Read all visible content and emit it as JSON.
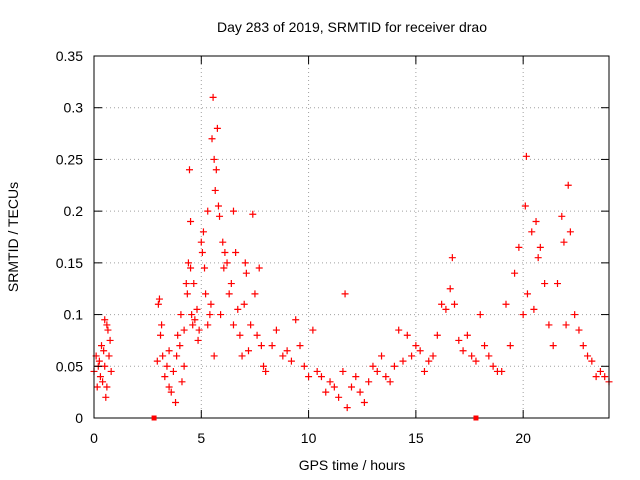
{
  "chart_data": {
    "type": "scatter",
    "title": "Day 283 of 2019, SRMTID for receiver drao",
    "xlabel": "GPS time / hours",
    "ylabel": "SRMTID / TECUs",
    "xlim": [
      0,
      24
    ],
    "ylim": [
      0,
      0.35
    ],
    "grid": true,
    "marker": "+",
    "color": "#ff0000",
    "x_ticks": [
      0,
      5,
      10,
      15,
      20
    ],
    "x_tick_labels": [
      "0",
      "5",
      "10",
      "15",
      "20"
    ],
    "y_ticks": [
      0,
      0.05,
      0.1,
      0.15,
      0.2,
      0.25,
      0.3,
      0.35
    ],
    "y_tick_labels": [
      "0",
      "0.05",
      "0.1",
      "0.15",
      "0.2",
      "0.25",
      "0.3",
      "0.35"
    ],
    "gap_markers": {
      "x": [
        2.8,
        17.8
      ],
      "y": 0
    },
    "series": [
      {
        "name": "SRMTID",
        "points": [
          [
            0.0,
            0.045
          ],
          [
            0.1,
            0.06
          ],
          [
            0.15,
            0.03
          ],
          [
            0.2,
            0.05
          ],
          [
            0.25,
            0.055
          ],
          [
            0.3,
            0.04
          ],
          [
            0.35,
            0.07
          ],
          [
            0.4,
            0.035
          ],
          [
            0.45,
            0.065
          ],
          [
            0.5,
            0.05
          ],
          [
            0.5,
            0.095
          ],
          [
            0.55,
            0.02
          ],
          [
            0.6,
            0.03
          ],
          [
            0.6,
            0.09
          ],
          [
            0.65,
            0.085
          ],
          [
            0.7,
            0.06
          ],
          [
            0.75,
            0.075
          ],
          [
            0.8,
            0.045
          ],
          [
            2.95,
            0.055
          ],
          [
            3.0,
            0.11
          ],
          [
            3.05,
            0.115
          ],
          [
            3.1,
            0.08
          ],
          [
            3.15,
            0.09
          ],
          [
            3.2,
            0.06
          ],
          [
            3.3,
            0.04
          ],
          [
            3.4,
            0.05
          ],
          [
            3.5,
            0.065
          ],
          [
            3.5,
            0.03
          ],
          [
            3.6,
            0.025
          ],
          [
            3.7,
            0.045
          ],
          [
            3.8,
            0.015
          ],
          [
            3.85,
            0.06
          ],
          [
            3.9,
            0.08
          ],
          [
            4.0,
            0.07
          ],
          [
            4.05,
            0.1
          ],
          [
            4.1,
            0.035
          ],
          [
            4.2,
            0.05
          ],
          [
            4.2,
            0.085
          ],
          [
            4.3,
            0.13
          ],
          [
            4.35,
            0.12
          ],
          [
            4.4,
            0.15
          ],
          [
            4.45,
            0.24
          ],
          [
            4.5,
            0.19
          ],
          [
            4.5,
            0.145
          ],
          [
            4.55,
            0.1
          ],
          [
            4.6,
            0.09
          ],
          [
            4.65,
            0.13
          ],
          [
            4.7,
            0.095
          ],
          [
            4.8,
            0.105
          ],
          [
            4.85,
            0.075
          ],
          [
            4.9,
            0.085
          ],
          [
            5.0,
            0.17
          ],
          [
            5.05,
            0.16
          ],
          [
            5.1,
            0.18
          ],
          [
            5.15,
            0.145
          ],
          [
            5.2,
            0.12
          ],
          [
            5.3,
            0.2
          ],
          [
            5.3,
            0.09
          ],
          [
            5.4,
            0.1
          ],
          [
            5.45,
            0.11
          ],
          [
            5.5,
            0.27
          ],
          [
            5.55,
            0.31
          ],
          [
            5.6,
            0.25
          ],
          [
            5.6,
            0.06
          ],
          [
            5.65,
            0.22
          ],
          [
            5.7,
            0.24
          ],
          [
            5.75,
            0.28
          ],
          [
            5.8,
            0.205
          ],
          [
            5.85,
            0.195
          ],
          [
            5.9,
            0.1
          ],
          [
            6.0,
            0.17
          ],
          [
            6.05,
            0.145
          ],
          [
            6.1,
            0.16
          ],
          [
            6.2,
            0.15
          ],
          [
            6.3,
            0.12
          ],
          [
            6.4,
            0.13
          ],
          [
            6.5,
            0.09
          ],
          [
            6.5,
            0.2
          ],
          [
            6.6,
            0.16
          ],
          [
            6.7,
            0.105
          ],
          [
            6.8,
            0.08
          ],
          [
            6.9,
            0.06
          ],
          [
            7.0,
            0.11
          ],
          [
            7.05,
            0.15
          ],
          [
            7.1,
            0.14
          ],
          [
            7.2,
            0.065
          ],
          [
            7.3,
            0.09
          ],
          [
            7.4,
            0.197
          ],
          [
            7.5,
            0.12
          ],
          [
            7.6,
            0.08
          ],
          [
            7.7,
            0.145
          ],
          [
            7.8,
            0.07
          ],
          [
            7.9,
            0.05
          ],
          [
            8.0,
            0.045
          ],
          [
            8.3,
            0.07
          ],
          [
            8.5,
            0.085
          ],
          [
            8.8,
            0.06
          ],
          [
            9.0,
            0.065
          ],
          [
            9.2,
            0.055
          ],
          [
            9.4,
            0.095
          ],
          [
            9.6,
            0.07
          ],
          [
            9.8,
            0.05
          ],
          [
            10.0,
            0.04
          ],
          [
            10.2,
            0.085
          ],
          [
            10.4,
            0.045
          ],
          [
            10.6,
            0.04
          ],
          [
            10.8,
            0.025
          ],
          [
            11.0,
            0.035
          ],
          [
            11.2,
            0.03
          ],
          [
            11.4,
            0.02
          ],
          [
            11.6,
            0.045
          ],
          [
            11.7,
            0.12
          ],
          [
            11.8,
            0.01
          ],
          [
            12.0,
            0.03
          ],
          [
            12.2,
            0.04
          ],
          [
            12.4,
            0.025
          ],
          [
            12.6,
            0.015
          ],
          [
            12.8,
            0.035
          ],
          [
            13.0,
            0.05
          ],
          [
            13.2,
            0.045
          ],
          [
            13.4,
            0.06
          ],
          [
            13.6,
            0.04
          ],
          [
            13.8,
            0.035
          ],
          [
            14.0,
            0.05
          ],
          [
            14.2,
            0.085
          ],
          [
            14.4,
            0.055
          ],
          [
            14.6,
            0.08
          ],
          [
            14.8,
            0.06
          ],
          [
            15.0,
            0.07
          ],
          [
            15.2,
            0.065
          ],
          [
            15.4,
            0.045
          ],
          [
            15.6,
            0.055
          ],
          [
            15.8,
            0.06
          ],
          [
            16.0,
            0.08
          ],
          [
            16.2,
            0.11
          ],
          [
            16.4,
            0.105
          ],
          [
            16.6,
            0.125
          ],
          [
            16.7,
            0.155
          ],
          [
            16.8,
            0.11
          ],
          [
            17.0,
            0.075
          ],
          [
            17.2,
            0.065
          ],
          [
            17.4,
            0.08
          ],
          [
            17.6,
            0.06
          ],
          [
            17.8,
            0.055
          ],
          [
            18.0,
            0.1
          ],
          [
            18.2,
            0.07
          ],
          [
            18.4,
            0.06
          ],
          [
            18.6,
            0.05
          ],
          [
            18.8,
            0.045
          ],
          [
            19.0,
            0.045
          ],
          [
            19.2,
            0.11
          ],
          [
            19.4,
            0.07
          ],
          [
            19.6,
            0.14
          ],
          [
            19.8,
            0.165
          ],
          [
            20.0,
            0.1
          ],
          [
            20.1,
            0.205
          ],
          [
            20.15,
            0.253
          ],
          [
            20.2,
            0.12
          ],
          [
            20.4,
            0.18
          ],
          [
            20.5,
            0.105
          ],
          [
            20.6,
            0.19
          ],
          [
            20.7,
            0.155
          ],
          [
            20.8,
            0.165
          ],
          [
            21.0,
            0.13
          ],
          [
            21.2,
            0.09
          ],
          [
            21.4,
            0.07
          ],
          [
            21.6,
            0.13
          ],
          [
            21.8,
            0.195
          ],
          [
            21.9,
            0.17
          ],
          [
            22.0,
            0.09
          ],
          [
            22.1,
            0.225
          ],
          [
            22.2,
            0.18
          ],
          [
            22.4,
            0.1
          ],
          [
            22.6,
            0.085
          ],
          [
            22.8,
            0.07
          ],
          [
            23.0,
            0.06
          ],
          [
            23.2,
            0.055
          ],
          [
            23.4,
            0.04
          ],
          [
            23.6,
            0.045
          ],
          [
            23.8,
            0.04
          ],
          [
            24.0,
            0.035
          ]
        ]
      }
    ]
  }
}
